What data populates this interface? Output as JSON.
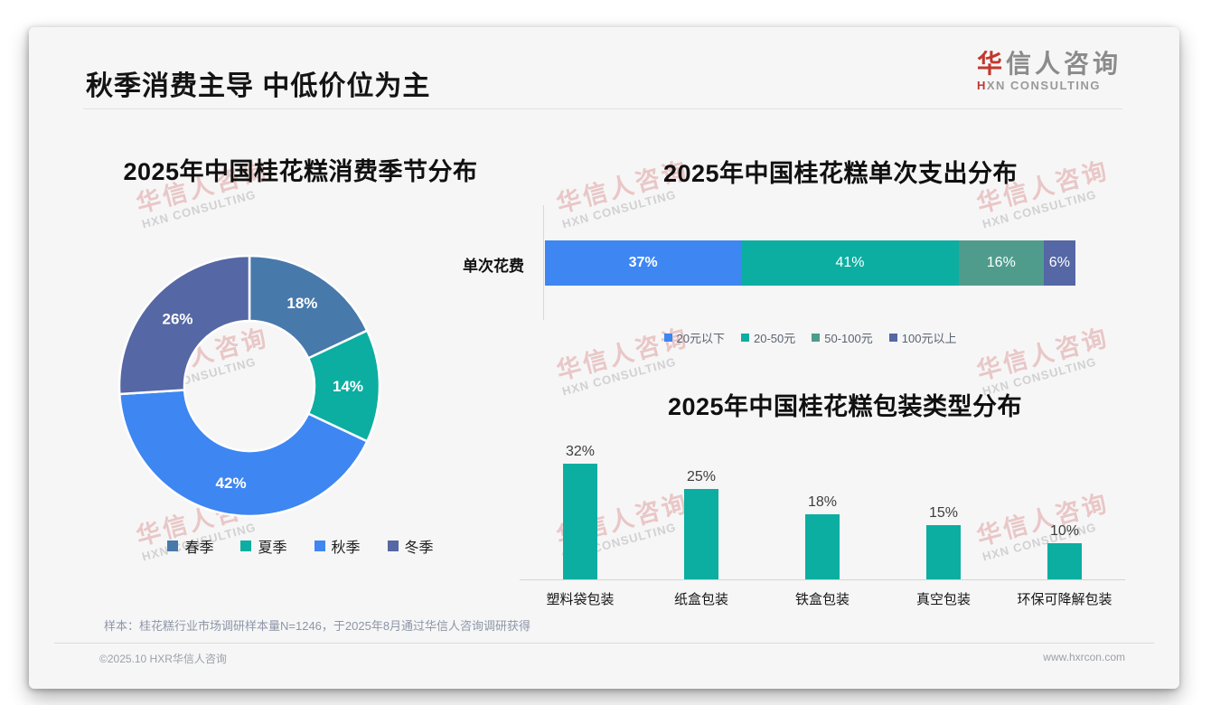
{
  "page": {
    "title": "秋季消费主导 中低价位为主",
    "logo": {
      "cn_first": "华",
      "cn_rest": "信人咨询",
      "en_first": "H",
      "en_rest": "XN CONSULTING"
    },
    "watermark": {
      "line1": "华信人咨询",
      "line2": "HXN CONSULTING"
    },
    "footnote": "样本：桂花糕行业市场调研样本量N=1246，于2025年8月通过华信人咨询调研获得",
    "footer": {
      "copyright": "©2025.10 HXR华信人咨询",
      "website": "www.hxrcon.com"
    }
  },
  "colors": {
    "bright_blue": "#3e86f2",
    "teal": "#0caea1",
    "steel_blue": "#4879ab",
    "slate_blue": "#5567a4",
    "sea_green": "#4f9c8d",
    "watermark_red": "#c95856",
    "logo_red": "#c2372e"
  },
  "chart_data": [
    {
      "type": "pie",
      "subtype": "donut",
      "title": "2025年中国桂花糕消费季节分布",
      "categories": [
        "春季",
        "夏季",
        "秋季",
        "冬季"
      ],
      "values": [
        18,
        14,
        42,
        26
      ],
      "labels": [
        "18%",
        "14%",
        "42%",
        "26%"
      ],
      "colors": [
        "#4879ab",
        "#0caea1",
        "#3e86f2",
        "#5567a4"
      ],
      "start_angle": "top",
      "direction": "clockwise",
      "inner_radius_ratio": 0.5,
      "legend_position": "bottom",
      "data_label_style": "percent-inside-white"
    },
    {
      "type": "bar",
      "subtype": "horizontal-stacked",
      "title": "2025年中国桂花糕单次支出分布",
      "category_axis_label": "单次花费",
      "series": [
        {
          "name": "20元以下",
          "value": 37,
          "label": "37%",
          "color": "#3e86f2"
        },
        {
          "name": "20-50元",
          "value": 41,
          "label": "41%",
          "color": "#0caea1"
        },
        {
          "name": "50-100元",
          "value": 16,
          "label": "16%",
          "color": "#4f9c8d"
        },
        {
          "name": "100元以上",
          "value": 6,
          "label": "6%",
          "color": "#5567a4"
        }
      ],
      "xlim": [
        0,
        100
      ],
      "unit": "%",
      "legend_position": "bottom"
    },
    {
      "type": "bar",
      "subtype": "vertical",
      "title": "2025年中国桂花糕包装类型分布",
      "categories": [
        "塑料袋包装",
        "纸盒包装",
        "铁盒包装",
        "真空包装",
        "环保可降解包装"
      ],
      "values": [
        32,
        25,
        18,
        15,
        10
      ],
      "labels": [
        "32%",
        "25%",
        "18%",
        "15%",
        "10%"
      ],
      "bar_color": "#0caea1",
      "unit": "%",
      "ylim": [
        0,
        38
      ],
      "grid": false
    }
  ]
}
